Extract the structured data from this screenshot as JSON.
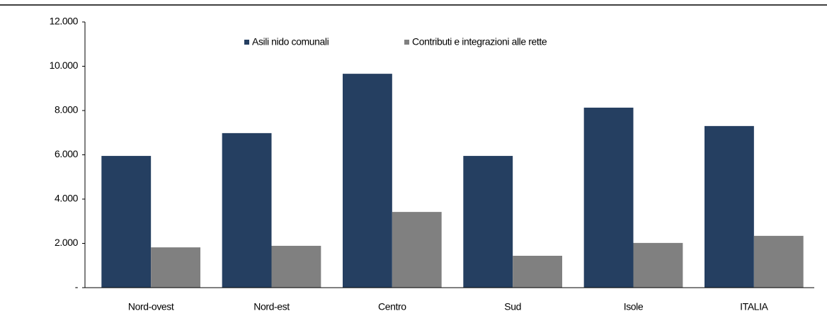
{
  "chart_data": {
    "type": "bar",
    "categories": [
      "Nord-ovest",
      "Nord-est",
      "Centro",
      "Sud",
      "Isole",
      "ITALIA"
    ],
    "series": [
      {
        "name": "Asili nido comunali",
        "color": "#253f61",
        "values": [
          5950,
          6980,
          9660,
          5950,
          8130,
          7300
        ]
      },
      {
        "name": "Contributi e integrazioni alle rette",
        "color": "#808080",
        "values": [
          1820,
          1890,
          3420,
          1440,
          2020,
          2340
        ]
      }
    ],
    "ylim": [
      0,
      12000
    ],
    "yticks": [
      {
        "value": 0,
        "label": "-"
      },
      {
        "value": 2000,
        "label": "2.000"
      },
      {
        "value": 4000,
        "label": "4.000"
      },
      {
        "value": 6000,
        "label": "6.000"
      },
      {
        "value": 8000,
        "label": "8.000"
      },
      {
        "value": 10000,
        "label": "10.000"
      },
      {
        "value": 12000,
        "label": "12.000"
      }
    ],
    "legend": "top"
  }
}
